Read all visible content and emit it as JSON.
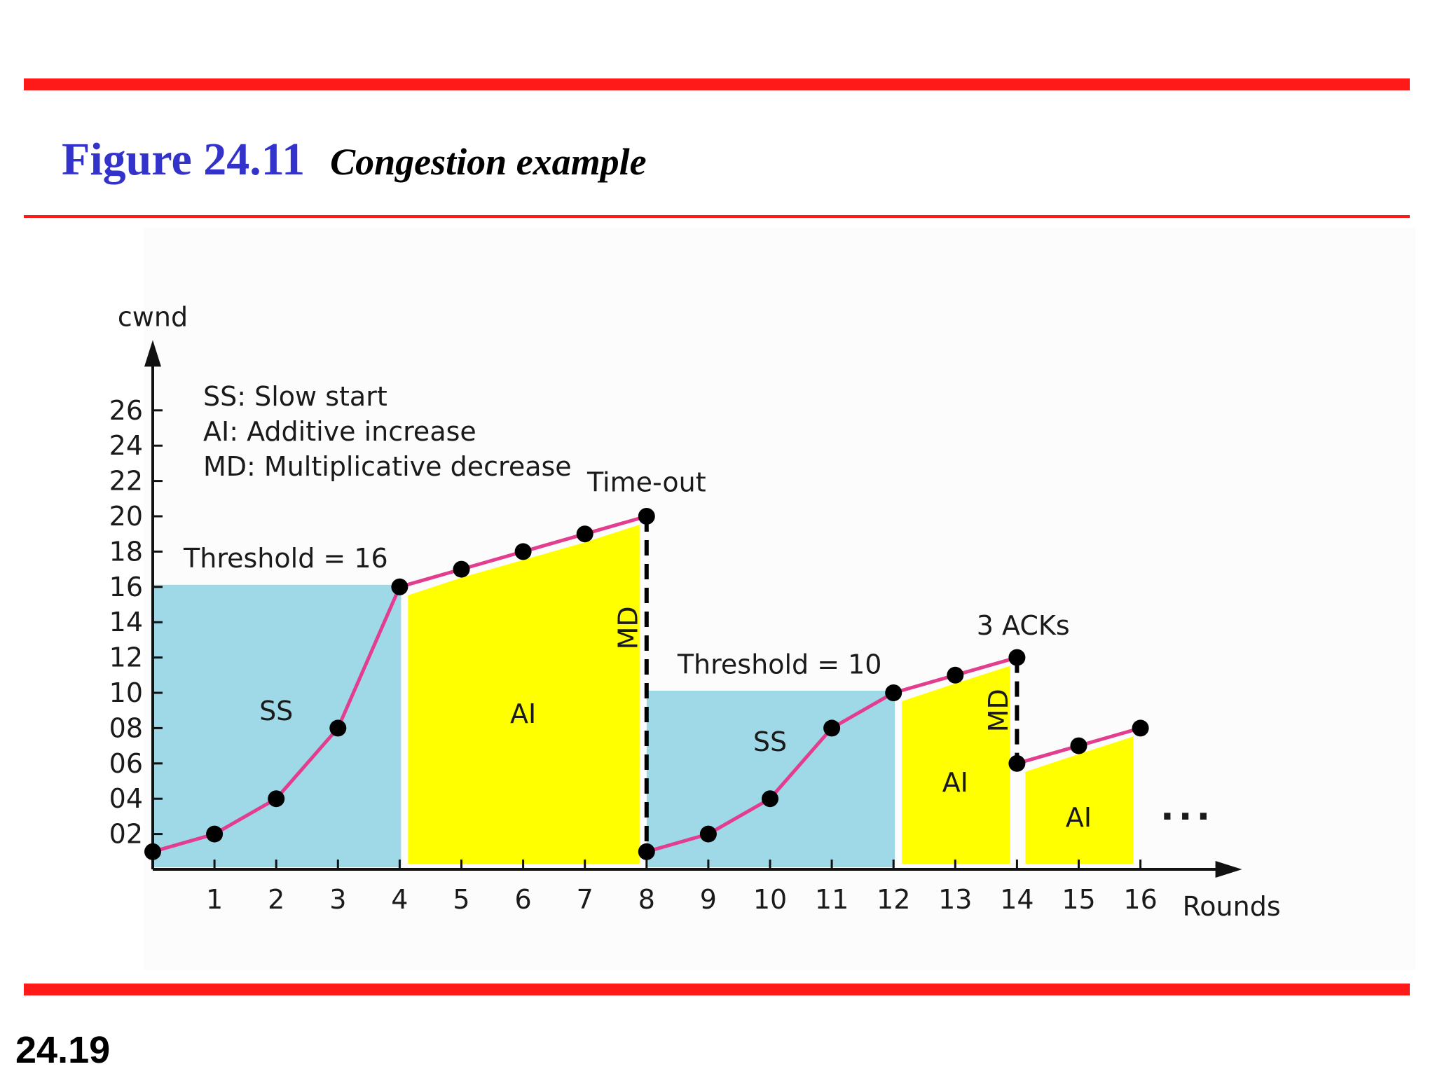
{
  "slide": {
    "figure_number": "Figure 24.11",
    "figure_caption": "Congestion example",
    "page_number": "24.19"
  },
  "colors": {
    "rule": "#ff1a1a",
    "title_blue": "#3333cc",
    "ss_fill": "#9fd9e8",
    "ai_fill": "#ffff00",
    "cwnd_line": "#e23d8f",
    "marker": "#000000"
  },
  "chart_data": {
    "type": "line",
    "title": "",
    "xlabel": "Rounds",
    "ylabel": "cwnd",
    "x_ticks": [
      1,
      2,
      3,
      4,
      5,
      6,
      7,
      8,
      9,
      10,
      11,
      12,
      13,
      14,
      15,
      16
    ],
    "y_ticks": [
      "02",
      "04",
      "06",
      "08",
      "10",
      "12",
      "14",
      "16",
      "18",
      "20",
      "22",
      "24",
      "26"
    ],
    "ylim": [
      0,
      28
    ],
    "xlim": [
      0,
      16
    ],
    "legend": [
      "SS: Slow start",
      "AI: Additive increase",
      "MD: Multiplicative decrease"
    ],
    "series": [
      {
        "segments": [
          [
            [
              0,
              1
            ],
            [
              1,
              2
            ],
            [
              2,
              4
            ],
            [
              3,
              8
            ],
            [
              4,
              16
            ],
            [
              5,
              17
            ],
            [
              6,
              18
            ],
            [
              7,
              19
            ],
            [
              8,
              20
            ]
          ],
          [
            [
              8,
              1
            ],
            [
              9,
              2
            ],
            [
              10,
              4
            ],
            [
              11,
              8
            ],
            [
              12,
              10
            ],
            [
              13,
              11
            ],
            [
              14,
              12
            ]
          ],
          [
            [
              14,
              6
            ],
            [
              15,
              7
            ],
            [
              16,
              8
            ]
          ]
        ]
      }
    ],
    "regions": [
      {
        "label": "SS",
        "kind": "ss",
        "x0": 0,
        "x1": 4,
        "top": 16
      },
      {
        "label": "AI",
        "kind": "ai",
        "x0": 4,
        "x1": 8
      },
      {
        "label": "SS",
        "kind": "ss",
        "x0": 8,
        "x1": 12,
        "top": 10
      },
      {
        "label": "AI",
        "kind": "ai",
        "x0": 12,
        "x1": 14
      },
      {
        "label": "AI",
        "kind": "ai",
        "x0": 14,
        "x1": 16
      }
    ],
    "drops": [
      {
        "label": "MD",
        "x": 8,
        "from": 20,
        "to": 1
      },
      {
        "label": "MD",
        "x": 14,
        "from": 12,
        "to": 6
      }
    ],
    "annotations": [
      {
        "text": "Threshold = 16",
        "x": 0.5,
        "y": 17.1
      },
      {
        "text": "Threshold = 10",
        "x": 8.5,
        "y": 11.1
      },
      {
        "text": "Time-out",
        "x": 8,
        "y": 21.4
      },
      {
        "text": "3 ACKs",
        "x": 14.1,
        "y": 13.3
      }
    ],
    "continuation": "..."
  }
}
